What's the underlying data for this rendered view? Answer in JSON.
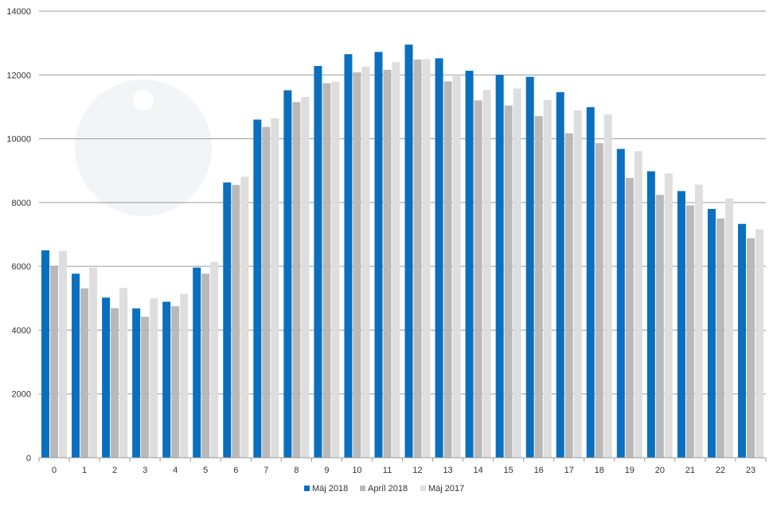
{
  "chart_data": {
    "type": "bar",
    "title": "",
    "xlabel": "",
    "ylabel": "",
    "ylim": [
      0,
      14000
    ],
    "yticks": [
      0,
      2000,
      4000,
      6000,
      8000,
      10000,
      12000,
      14000
    ],
    "grid": true,
    "legend_position": "bottom-center",
    "categories": [
      "0",
      "1",
      "2",
      "3",
      "4",
      "5",
      "6",
      "7",
      "8",
      "9",
      "10",
      "11",
      "12",
      "13",
      "14",
      "15",
      "16",
      "17",
      "18",
      "19",
      "20",
      "21",
      "22",
      "23"
    ],
    "series": [
      {
        "name": "Máj 2018",
        "color": "#0a6fbf",
        "values": [
          6500,
          5770,
          5020,
          4680,
          4890,
          5960,
          8630,
          10600,
          11520,
          12280,
          12650,
          12720,
          12950,
          12520,
          12130,
          12000,
          11940,
          11460,
          10990,
          9680,
          8980,
          8360,
          7800,
          7330
        ]
      },
      {
        "name": "Apríl 2018",
        "color": "#b9b9b9",
        "values": [
          5990,
          5310,
          4690,
          4420,
          4750,
          5770,
          8550,
          10370,
          11150,
          11740,
          12080,
          12160,
          12480,
          11800,
          11200,
          11040,
          10710,
          10170,
          9860,
          8770,
          8240,
          7910,
          7500,
          6880
        ]
      },
      {
        "name": "Máj 2017",
        "color": "#dedede",
        "values": [
          6480,
          5960,
          5320,
          5000,
          5140,
          6140,
          8810,
          10640,
          11310,
          11790,
          12260,
          12400,
          12500,
          12000,
          11530,
          11570,
          11210,
          10890,
          10760,
          9610,
          8910,
          8560,
          8130,
          7160
        ]
      }
    ]
  }
}
